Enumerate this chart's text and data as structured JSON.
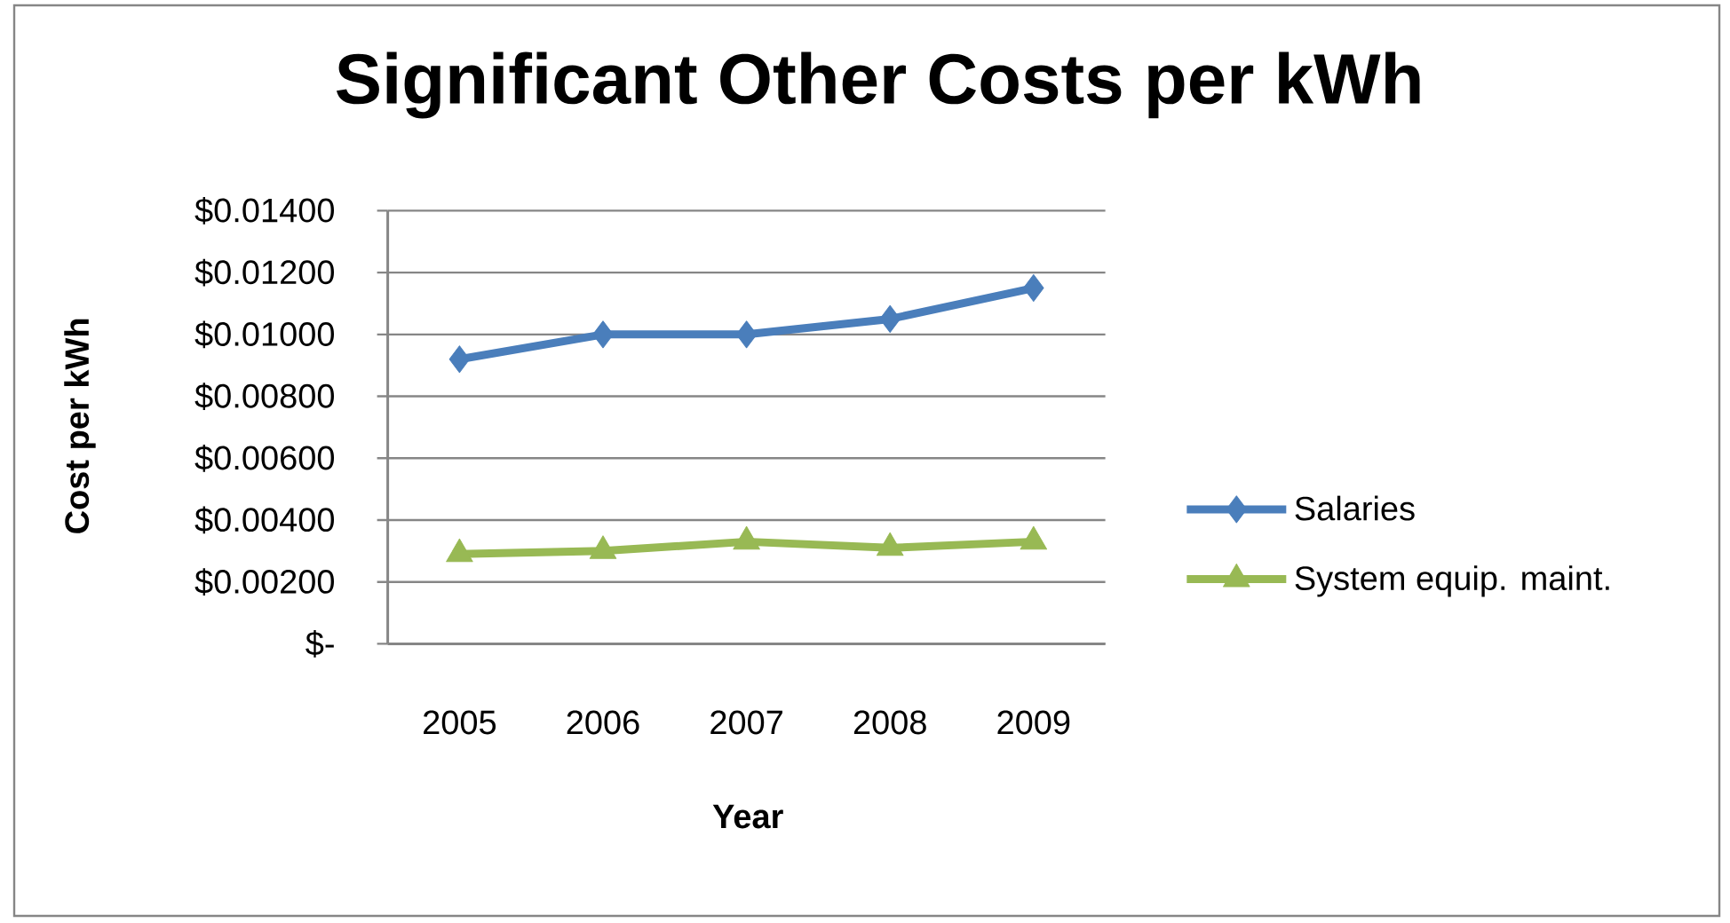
{
  "chart_data": {
    "type": "line",
    "title": "Significant Other Costs per kWh",
    "xlabel": "Year",
    "ylabel": "Cost per kWh",
    "categories": [
      "2005",
      "2006",
      "2007",
      "2008",
      "2009"
    ],
    "series": [
      {
        "name": "Salaries",
        "color": "#4a7ebb",
        "marker": "diamond",
        "values": [
          0.0092,
          0.01,
          0.01,
          0.0105,
          0.0115
        ]
      },
      {
        "name": "System equip. maint.",
        "color": "#98b954",
        "marker": "triangle",
        "values": [
          0.0029,
          0.003,
          0.0033,
          0.0031,
          0.0033
        ]
      }
    ],
    "ylim": [
      0,
      0.014
    ],
    "yticks": [
      {
        "value": 0,
        "label": "$-"
      },
      {
        "value": 0.002,
        "label": "$0.00200"
      },
      {
        "value": 0.004,
        "label": "$0.00400"
      },
      {
        "value": 0.006,
        "label": "$0.00600"
      },
      {
        "value": 0.008,
        "label": "$0.00800"
      },
      {
        "value": 0.01,
        "label": "$0.01000"
      },
      {
        "value": 0.012,
        "label": "$0.01200"
      },
      {
        "value": 0.014,
        "label": "$0.01400"
      }
    ],
    "grid": "y",
    "legend": "right",
    "line_style": "solid"
  }
}
